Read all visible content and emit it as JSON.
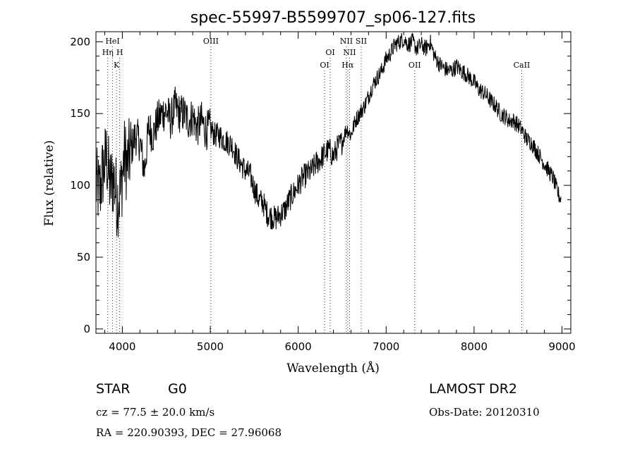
{
  "chart_data": {
    "type": "line",
    "title": "spec-55997-B5599707_sp06-127.fits",
    "xlabel": "Wavelength (Å)",
    "ylabel": "Flux (relative)",
    "xlim": [
      3700,
      9100
    ],
    "ylim": [
      -3,
      207
    ],
    "xticks": [
      4000,
      5000,
      6000,
      7000,
      8000,
      9000
    ],
    "yticks": [
      0,
      50,
      100,
      150,
      200
    ],
    "grid": false,
    "series": [
      {
        "x": [
          3700,
          3740,
          3780,
          3820,
          3860,
          3900,
          3940,
          3980,
          4020,
          4060,
          4100,
          4150,
          4200,
          4250,
          4300,
          4350,
          4400,
          4450,
          4500,
          4550,
          4600,
          4650,
          4700,
          4750,
          4800,
          4850,
          4900,
          4950,
          5000,
          5050,
          5100,
          5150,
          5200,
          5250,
          5300,
          5350,
          5400,
          5450,
          5500,
          5550,
          5600,
          5650,
          5700,
          5750,
          5800,
          5850,
          5900,
          5950,
          6000,
          6050,
          6100,
          6150,
          6200,
          6250,
          6300,
          6350,
          6400,
          6450,
          6500,
          6550,
          6600,
          6650,
          6700,
          6750,
          6800,
          6850,
          6900,
          6950,
          7000,
          7050,
          7100,
          7150,
          7200,
          7250,
          7300,
          7350,
          7400,
          7450,
          7500,
          7550,
          7600,
          7650,
          7700,
          7750,
          7800,
          7850,
          7900,
          7950,
          8000,
          8050,
          8100,
          8150,
          8200,
          8250,
          8300,
          8350,
          8400,
          8450,
          8500,
          8550,
          8600,
          8650,
          8700,
          8750,
          8800,
          8850,
          8900,
          8950,
          8990
        ],
        "y": [
          100,
          95,
          110,
          120,
          100,
          105,
          90,
          95,
          120,
          115,
          125,
          135,
          130,
          110,
          140,
          135,
          145,
          150,
          152,
          145,
          155,
          150,
          150,
          145,
          148,
          140,
          145,
          138,
          140,
          135,
          135,
          132,
          130,
          128,
          120,
          115,
          110,
          108,
          98,
          90,
          88,
          80,
          78,
          77,
          80,
          83,
          90,
          95,
          100,
          105,
          108,
          110,
          115,
          118,
          122,
          125,
          120,
          127,
          130,
          140,
          135,
          145,
          150,
          155,
          162,
          170,
          175,
          180,
          188,
          192,
          198,
          200,
          202,
          198,
          200,
          195,
          198,
          195,
          200,
          190,
          185,
          182,
          180,
          180,
          183,
          180,
          178,
          175,
          172,
          167,
          165,
          162,
          158,
          155,
          150,
          148,
          145,
          145,
          142,
          138,
          132,
          130,
          125,
          120,
          115,
          110,
          105,
          95,
          90
        ]
      }
    ],
    "spectral_lines": [
      {
        "label": "HeI",
        "wavelength": 3889,
        "row": 1
      },
      {
        "label": "Hη",
        "wavelength": 3835,
        "row": 2
      },
      {
        "label": "H",
        "wavelength": 3970,
        "row": 2
      },
      {
        "label": "K",
        "wavelength": 3934,
        "row": 3
      },
      {
        "label": "OIII",
        "wavelength": 5007,
        "row": 1
      },
      {
        "label": "OI",
        "wavelength": 6364,
        "row": 2
      },
      {
        "label": "OI",
        "wavelength": 6300,
        "row": 3
      },
      {
        "label": "NII",
        "wavelength": 6548,
        "row": 1
      },
      {
        "label": "SII",
        "wavelength": 6717,
        "row": 1
      },
      {
        "label": "NII",
        "wavelength": 6584,
        "row": 2
      },
      {
        "label": "Hα",
        "wavelength": 6563,
        "row": 3
      },
      {
        "label": "OII",
        "wavelength": 7325,
        "row": 3
      },
      {
        "label": "CaII",
        "wavelength": 8542,
        "row": 3
      }
    ]
  },
  "info": {
    "object_class": "STAR",
    "subclass": "G0",
    "survey": "LAMOST DR2",
    "cz": "cz = 77.5 ± 20.0 km/s",
    "obs_date": "Obs-Date: 20120310",
    "coords": "RA = 220.90393, DEC =  27.96068"
  }
}
